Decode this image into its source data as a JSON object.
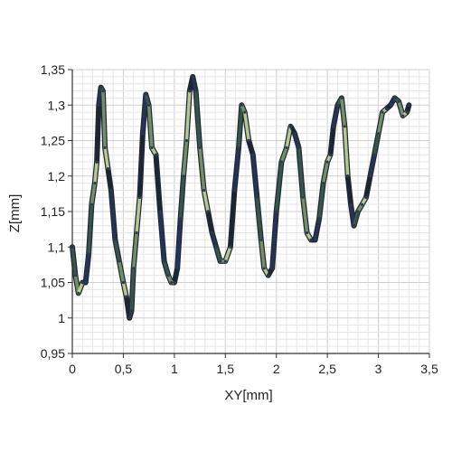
{
  "chart_data": {
    "type": "line",
    "xlabel": "XY[mm]",
    "ylabel": "Z[mm]",
    "xlim": [
      0,
      3.5
    ],
    "ylim": [
      0.95,
      1.35
    ],
    "xticks": [
      0,
      0.5,
      1,
      1.5,
      2,
      2.5,
      3,
      3.5
    ],
    "yticks": [
      0.95,
      1,
      1.05,
      1.1,
      1.15,
      1.2,
      1.25,
      1.3,
      1.35
    ],
    "xtick_labels": [
      "0",
      "0,5",
      "1",
      "1,5",
      "2",
      "2,5",
      "3",
      "3,5"
    ],
    "ytick_labels": [
      "0,95",
      "1",
      "1,05",
      "1,1",
      "1,15",
      "1,2",
      "1,25",
      "1,3",
      "1,35"
    ],
    "grid": true,
    "legend": "none",
    "series": [
      {
        "line_colors": [
          "#27345a",
          "#3b5a4a",
          "#7f9a6a",
          "#c9d79a",
          "#1c2530"
        ],
        "points": [
          [
            0.0,
            1.1
          ],
          [
            0.03,
            1.06
          ],
          [
            0.06,
            1.035
          ],
          [
            0.1,
            1.05
          ],
          [
            0.13,
            1.05
          ],
          [
            0.16,
            1.09
          ],
          [
            0.19,
            1.16
          ],
          [
            0.22,
            1.19
          ],
          [
            0.24,
            1.22
          ],
          [
            0.26,
            1.3
          ],
          [
            0.28,
            1.325
          ],
          [
            0.3,
            1.32
          ],
          [
            0.32,
            1.24
          ],
          [
            0.35,
            1.21
          ],
          [
            0.38,
            1.18
          ],
          [
            0.42,
            1.11
          ],
          [
            0.46,
            1.08
          ],
          [
            0.5,
            1.05
          ],
          [
            0.53,
            1.03
          ],
          [
            0.56,
            1.0
          ],
          [
            0.58,
            1.01
          ],
          [
            0.6,
            1.07
          ],
          [
            0.63,
            1.12
          ],
          [
            0.66,
            1.17
          ],
          [
            0.69,
            1.26
          ],
          [
            0.72,
            1.315
          ],
          [
            0.75,
            1.3
          ],
          [
            0.78,
            1.24
          ],
          [
            0.82,
            1.23
          ],
          [
            0.86,
            1.15
          ],
          [
            0.9,
            1.08
          ],
          [
            0.94,
            1.06
          ],
          [
            0.97,
            1.05
          ],
          [
            1.0,
            1.05
          ],
          [
            1.03,
            1.07
          ],
          [
            1.06,
            1.14
          ],
          [
            1.09,
            1.2
          ],
          [
            1.12,
            1.25
          ],
          [
            1.15,
            1.32
          ],
          [
            1.18,
            1.34
          ],
          [
            1.21,
            1.32
          ],
          [
            1.25,
            1.24
          ],
          [
            1.29,
            1.18
          ],
          [
            1.33,
            1.15
          ],
          [
            1.37,
            1.12
          ],
          [
            1.41,
            1.1
          ],
          [
            1.45,
            1.08
          ],
          [
            1.5,
            1.08
          ],
          [
            1.55,
            1.1
          ],
          [
            1.59,
            1.18
          ],
          [
            1.63,
            1.24
          ],
          [
            1.66,
            1.3
          ],
          [
            1.69,
            1.29
          ],
          [
            1.73,
            1.25
          ],
          [
            1.77,
            1.23
          ],
          [
            1.81,
            1.17
          ],
          [
            1.85,
            1.11
          ],
          [
            1.88,
            1.07
          ],
          [
            1.92,
            1.06
          ],
          [
            1.96,
            1.07
          ],
          [
            2.0,
            1.15
          ],
          [
            2.05,
            1.22
          ],
          [
            2.1,
            1.24
          ],
          [
            2.14,
            1.27
          ],
          [
            2.18,
            1.26
          ],
          [
            2.22,
            1.24
          ],
          [
            2.26,
            1.17
          ],
          [
            2.3,
            1.12
          ],
          [
            2.34,
            1.11
          ],
          [
            2.38,
            1.11
          ],
          [
            2.42,
            1.14
          ],
          [
            2.46,
            1.19
          ],
          [
            2.5,
            1.22
          ],
          [
            2.53,
            1.23
          ],
          [
            2.56,
            1.27
          ],
          [
            2.6,
            1.3
          ],
          [
            2.64,
            1.31
          ],
          [
            2.67,
            1.27
          ],
          [
            2.7,
            1.2
          ],
          [
            2.73,
            1.16
          ],
          [
            2.76,
            1.13
          ],
          [
            2.8,
            1.15
          ],
          [
            2.84,
            1.16
          ],
          [
            2.88,
            1.17
          ],
          [
            2.92,
            1.2
          ],
          [
            2.96,
            1.23
          ],
          [
            3.0,
            1.26
          ],
          [
            3.04,
            1.29
          ],
          [
            3.08,
            1.295
          ],
          [
            3.12,
            1.3
          ],
          [
            3.16,
            1.31
          ],
          [
            3.2,
            1.305
          ],
          [
            3.24,
            1.285
          ],
          [
            3.28,
            1.29
          ],
          [
            3.3,
            1.3
          ]
        ]
      }
    ]
  }
}
